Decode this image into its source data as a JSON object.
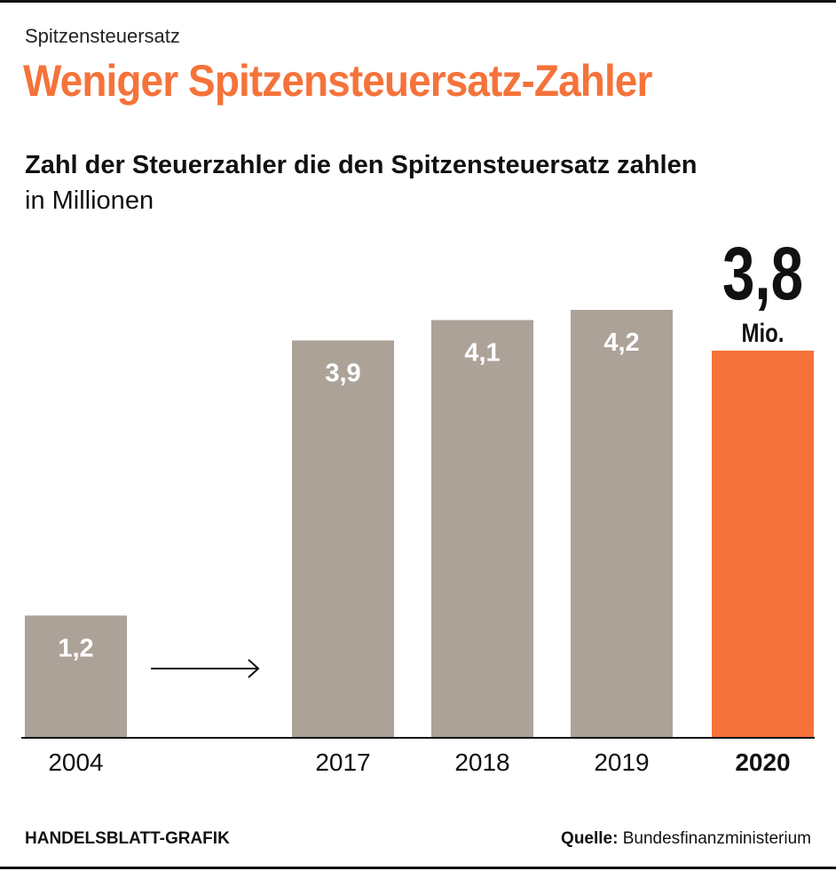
{
  "header": {
    "kicker": "Spitzensteuersatz",
    "headline": "Weniger Spitzensteuersatz-Zahler"
  },
  "chart_data": {
    "type": "bar",
    "title": "Zahl der Steuerzahler die den Spitzensteuersatz zahlen",
    "subtitle": "in Millionen",
    "categories": [
      "2004",
      "2017",
      "2018",
      "2019",
      "2020"
    ],
    "values": [
      1.2,
      3.9,
      4.1,
      4.2,
      3.8
    ],
    "value_labels": [
      "1,2",
      "3,9",
      "4,1",
      "4,2",
      "3,8"
    ],
    "highlight_index": 4,
    "highlight_unit_label": "Mio.",
    "axis_break_between": [
      "2004",
      "2017"
    ],
    "ylim": [
      0,
      4.2
    ],
    "colors": {
      "bar": "#aca298",
      "highlight": "#f5733a",
      "axis": "#111111",
      "label": "#ffffff"
    }
  },
  "footer": {
    "credit": "HANDELSBLATT-GRAFIK",
    "source_label": "Quelle:",
    "source_value": "Bundesfinanzministerium"
  }
}
